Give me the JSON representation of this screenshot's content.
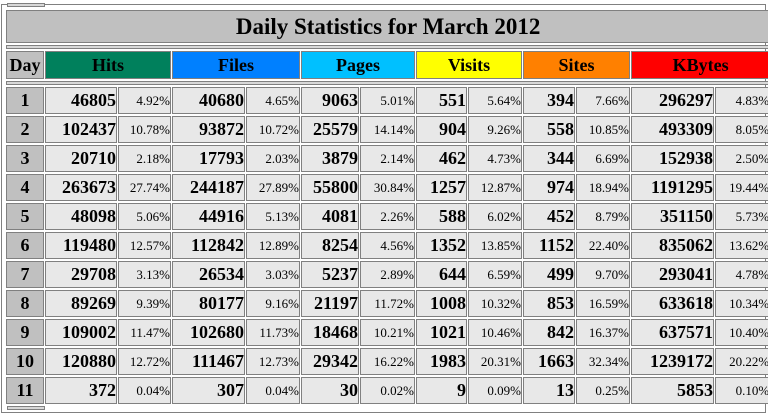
{
  "title": "Daily Statistics for March 2012",
  "headers": {
    "day": "Day",
    "hits": "Hits",
    "files": "Files",
    "pages": "Pages",
    "visits": "Visits",
    "sites": "Sites",
    "kbytes": "KBytes"
  },
  "colors": {
    "hits": "#00805c",
    "files": "#0080ff",
    "pages": "#00c0ff",
    "visits": "#ffff00",
    "sites": "#ff8000",
    "kbytes": "#ff0000",
    "header_gray": "#c0c0c0",
    "cell_bg": "#e8e8e8"
  },
  "rows": [
    {
      "day": "1",
      "hits": "46805",
      "hits_pct": "4.92%",
      "files": "40680",
      "files_pct": "4.65%",
      "pages": "9063",
      "pages_pct": "5.01%",
      "visits": "551",
      "visits_pct": "5.64%",
      "sites": "394",
      "sites_pct": "7.66%",
      "kbytes": "296297",
      "kbytes_pct": "4.83%"
    },
    {
      "day": "2",
      "hits": "102437",
      "hits_pct": "10.78%",
      "files": "93872",
      "files_pct": "10.72%",
      "pages": "25579",
      "pages_pct": "14.14%",
      "visits": "904",
      "visits_pct": "9.26%",
      "sites": "558",
      "sites_pct": "10.85%",
      "kbytes": "493309",
      "kbytes_pct": "8.05%"
    },
    {
      "day": "3",
      "hits": "20710",
      "hits_pct": "2.18%",
      "files": "17793",
      "files_pct": "2.03%",
      "pages": "3879",
      "pages_pct": "2.14%",
      "visits": "462",
      "visits_pct": "4.73%",
      "sites": "344",
      "sites_pct": "6.69%",
      "kbytes": "152938",
      "kbytes_pct": "2.50%"
    },
    {
      "day": "4",
      "hits": "263673",
      "hits_pct": "27.74%",
      "files": "244187",
      "files_pct": "27.89%",
      "pages": "55800",
      "pages_pct": "30.84%",
      "visits": "1257",
      "visits_pct": "12.87%",
      "sites": "974",
      "sites_pct": "18.94%",
      "kbytes": "1191295",
      "kbytes_pct": "19.44%"
    },
    {
      "day": "5",
      "hits": "48098",
      "hits_pct": "5.06%",
      "files": "44916",
      "files_pct": "5.13%",
      "pages": "4081",
      "pages_pct": "2.26%",
      "visits": "588",
      "visits_pct": "6.02%",
      "sites": "452",
      "sites_pct": "8.79%",
      "kbytes": "351150",
      "kbytes_pct": "5.73%"
    },
    {
      "day": "6",
      "hits": "119480",
      "hits_pct": "12.57%",
      "files": "112842",
      "files_pct": "12.89%",
      "pages": "8254",
      "pages_pct": "4.56%",
      "visits": "1352",
      "visits_pct": "13.85%",
      "sites": "1152",
      "sites_pct": "22.40%",
      "kbytes": "835062",
      "kbytes_pct": "13.62%"
    },
    {
      "day": "7",
      "hits": "29708",
      "hits_pct": "3.13%",
      "files": "26534",
      "files_pct": "3.03%",
      "pages": "5237",
      "pages_pct": "2.89%",
      "visits": "644",
      "visits_pct": "6.59%",
      "sites": "499",
      "sites_pct": "9.70%",
      "kbytes": "293041",
      "kbytes_pct": "4.78%"
    },
    {
      "day": "8",
      "hits": "89269",
      "hits_pct": "9.39%",
      "files": "80177",
      "files_pct": "9.16%",
      "pages": "21197",
      "pages_pct": "11.72%",
      "visits": "1008",
      "visits_pct": "10.32%",
      "sites": "853",
      "sites_pct": "16.59%",
      "kbytes": "633618",
      "kbytes_pct": "10.34%"
    },
    {
      "day": "9",
      "hits": "109002",
      "hits_pct": "11.47%",
      "files": "102680",
      "files_pct": "11.73%",
      "pages": "18468",
      "pages_pct": "10.21%",
      "visits": "1021",
      "visits_pct": "10.46%",
      "sites": "842",
      "sites_pct": "16.37%",
      "kbytes": "637571",
      "kbytes_pct": "10.40%"
    },
    {
      "day": "10",
      "hits": "120880",
      "hits_pct": "12.72%",
      "files": "111467",
      "files_pct": "12.73%",
      "pages": "29342",
      "pages_pct": "16.22%",
      "visits": "1983",
      "visits_pct": "20.31%",
      "sites": "1663",
      "sites_pct": "32.34%",
      "kbytes": "1239172",
      "kbytes_pct": "20.22%"
    },
    {
      "day": "11",
      "hits": "372",
      "hits_pct": "0.04%",
      "files": "307",
      "files_pct": "0.04%",
      "pages": "30",
      "pages_pct": "0.02%",
      "visits": "9",
      "visits_pct": "0.09%",
      "sites": "13",
      "sites_pct": "0.25%",
      "kbytes": "5853",
      "kbytes_pct": "0.10%"
    }
  ]
}
